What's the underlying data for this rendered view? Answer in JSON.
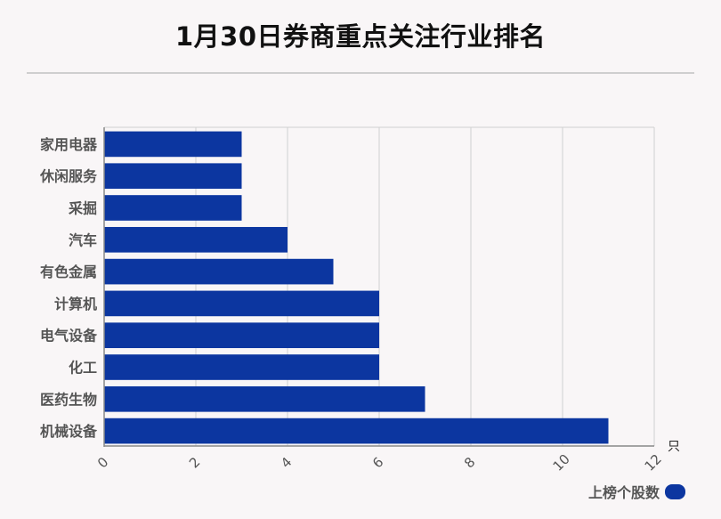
{
  "title": "1月30日券商重点关注行业排名",
  "legend_label": "上榜个股数",
  "unit_label": "只",
  "colors": {
    "bar": "#0c36a0",
    "grid": "#d0d0d0",
    "axis": "#888888",
    "label": "#555555"
  },
  "chart_data": {
    "type": "bar",
    "orientation": "horizontal",
    "categories": [
      "家用电器",
      "休闲服务",
      "采掘",
      "汽车",
      "有色金属",
      "计算机",
      "电气设备",
      "化工",
      "医药生物",
      "机械设备"
    ],
    "series": [
      {
        "name": "上榜个股数",
        "values": [
          3,
          3,
          3,
          4,
          5,
          6,
          6,
          6,
          7,
          11
        ]
      }
    ],
    "xlim": [
      0,
      12
    ],
    "xticks": [
      "0",
      "2",
      "4",
      "6",
      "8",
      "10",
      "12"
    ],
    "xlabel": "只",
    "grid": true,
    "legend": "bottom-right"
  }
}
